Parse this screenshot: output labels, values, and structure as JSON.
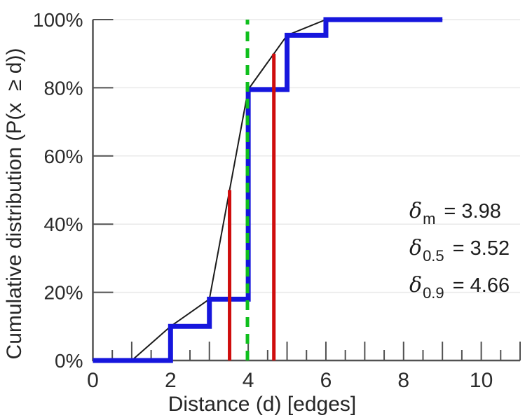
{
  "chart_data": {
    "type": "line",
    "title": "",
    "xlabel": "Distance (d) [edges]",
    "ylabel": "Cumulative distribution (P(x  ≥ d))",
    "xlim": [
      0,
      11
    ],
    "ylim": [
      0,
      100
    ],
    "grid": "horizontal-only",
    "legend": "none",
    "x_major_ticks": [
      0,
      1,
      2,
      3,
      4,
      5,
      6,
      7,
      8,
      9,
      10,
      11
    ],
    "x_labeled_ticks": [
      0,
      2,
      4,
      6,
      8,
      10
    ],
    "x_tick_labels": [
      "0",
      "2",
      "4",
      "6",
      "8",
      "10"
    ],
    "x_minor_tick_step": 0.5,
    "y_ticks": [
      0,
      20,
      40,
      60,
      80,
      100
    ],
    "y_tick_labels": [
      "0%",
      "20%",
      "40%",
      "60%",
      "80%",
      "100%"
    ],
    "series": [
      {
        "name": "linear-interpolation",
        "style": "line",
        "color": "#1a1a1a",
        "width": 2,
        "points": [
          [
            1,
            0
          ],
          [
            2,
            10
          ],
          [
            3,
            18
          ],
          [
            4,
            79.5
          ],
          [
            5,
            95.4
          ],
          [
            6,
            100
          ],
          [
            9,
            100
          ]
        ]
      },
      {
        "name": "empirical-cdf",
        "style": "step-post",
        "color": "#1616dd",
        "width": 7,
        "points": [
          [
            0,
            0
          ],
          [
            2,
            10
          ],
          [
            3,
            18
          ],
          [
            4,
            79.5
          ],
          [
            5,
            95.4
          ],
          [
            6,
            100
          ],
          [
            9,
            100
          ]
        ]
      }
    ],
    "markers": [
      {
        "name": "mean-delta",
        "x": 3.98,
        "y_top": 100,
        "color": "#0fbf1d",
        "style": "dashed",
        "width": 5
      },
      {
        "name": "median-delta",
        "x": 3.52,
        "y_top": 50,
        "color": "#cf0d0d",
        "style": "solid",
        "width": 5
      },
      {
        "name": "p90-delta",
        "x": 4.66,
        "y_top": 90,
        "color": "#cf0d0d",
        "style": "solid",
        "width": 5
      }
    ],
    "annotations": [
      {
        "symbol": "δ",
        "subscript": "m",
        "value": "= 3.98"
      },
      {
        "symbol": "δ",
        "subscript": "0.5",
        "value": "= 3.52"
      },
      {
        "symbol": "δ",
        "subscript": "0.9",
        "value": "= 4.66"
      }
    ],
    "colors": {
      "cdf_line": "#1616dd",
      "interpolation_line": "#1a1a1a",
      "mean_line": "#0fbf1d",
      "quantile_lines": "#cf0d0d",
      "grid": "#e9e9e9",
      "axis": "#515151",
      "text": "#2b2b2b"
    }
  }
}
